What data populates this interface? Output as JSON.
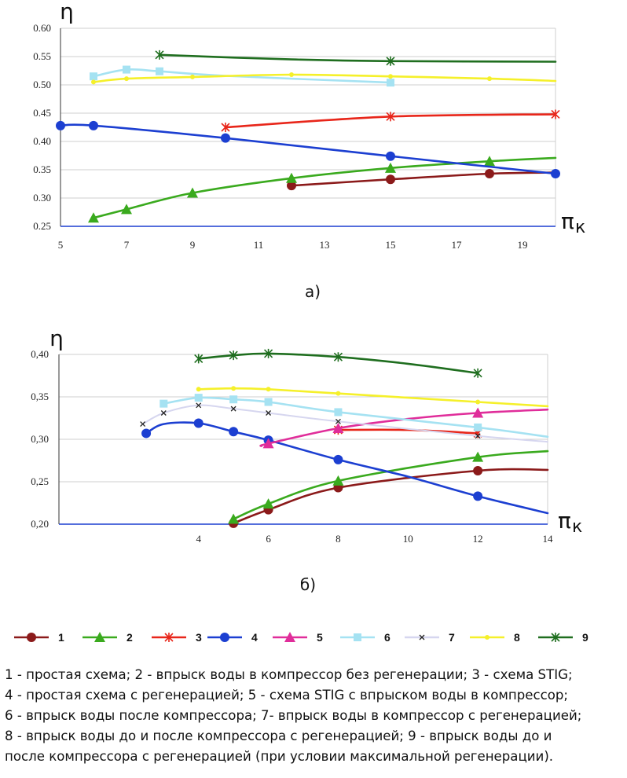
{
  "colors": {
    "s1": "#8b1a1a",
    "s2": "#3aaa1e",
    "s3": "#e8261a",
    "s4": "#1c3fd1",
    "s5": "#e02d9a",
    "s6": "#a5e2f2",
    "s7": "#d6d6ef",
    "s8": "#f5f02a",
    "s9": "#1f6e1f"
  },
  "markers": {
    "s1": "circle",
    "s2": "triangle",
    "s3": "star",
    "s4": "circle",
    "s5": "triangle",
    "s6": "square",
    "s7": "x",
    "s8": "dot",
    "s9": "star"
  },
  "chart_data": [
    {
      "type": "line",
      "panel_label": "а)",
      "ylabel": "η",
      "xlabel": "π",
      "xlabel_sub": "к",
      "xlim": [
        5,
        20
      ],
      "ylim": [
        0.25,
        0.6
      ],
      "x_ticks": [
        "5",
        "7",
        "9",
        "11",
        "13",
        "15",
        "17",
        "19"
      ],
      "x_tick_values": [
        5,
        7,
        9,
        11,
        13,
        15,
        17,
        19
      ],
      "y_ticks": [
        "0.25",
        "0.30",
        "0.35",
        "0.40",
        "0.45",
        "0.50",
        "0.55",
        "0.60"
      ],
      "y_tick_values": [
        0.25,
        0.3,
        0.35,
        0.4,
        0.45,
        0.5,
        0.55,
        0.6
      ],
      "grid": "horizontal",
      "series": [
        {
          "id": "s1",
          "x": [
            12,
            15,
            18,
            20
          ],
          "y": [
            0.322,
            0.333,
            0.343,
            0.345
          ],
          "marked": [
            12,
            15,
            18
          ]
        },
        {
          "id": "s2",
          "x": [
            6,
            7,
            9,
            12,
            15,
            18,
            20
          ],
          "y": [
            0.265,
            0.28,
            0.309,
            0.335,
            0.353,
            0.365,
            0.371
          ],
          "marked": [
            6,
            7,
            9,
            12,
            15,
            18
          ]
        },
        {
          "id": "s3",
          "x": [
            10,
            15,
            20
          ],
          "y": [
            0.425,
            0.444,
            0.448
          ],
          "marked": [
            10,
            15,
            20
          ]
        },
        {
          "id": "s4",
          "x": [
            5,
            6,
            10,
            15,
            20
          ],
          "y": [
            0.428,
            0.428,
            0.406,
            0.374,
            0.343
          ],
          "marked": [
            5,
            6,
            10,
            15,
            20
          ]
        },
        {
          "id": "s6",
          "x": [
            6,
            7,
            8,
            10,
            15
          ],
          "y": [
            0.515,
            0.527,
            0.524,
            0.516,
            0.504
          ],
          "marked": [
            6,
            7,
            8,
            15
          ]
        },
        {
          "id": "s8",
          "x": [
            6,
            7,
            9,
            12,
            15,
            18,
            20
          ],
          "y": [
            0.505,
            0.511,
            0.514,
            0.518,
            0.515,
            0.511,
            0.507
          ],
          "marked": [
            6,
            7,
            9,
            12,
            15,
            18
          ]
        },
        {
          "id": "s9",
          "x": [
            8,
            12,
            15,
            20
          ],
          "y": [
            0.553,
            0.545,
            0.542,
            0.541
          ],
          "marked": [
            8,
            15
          ]
        }
      ]
    },
    {
      "type": "line",
      "panel_label": "б)",
      "ylabel": "η",
      "xlabel": "π",
      "xlabel_sub": "к",
      "xlim": [
        0,
        14
      ],
      "ylim": [
        0.2,
        0.4
      ],
      "x_ticks": [
        "4",
        "6",
        "8",
        "10",
        "12",
        "14"
      ],
      "x_tick_values": [
        4,
        6,
        8,
        10,
        12,
        14
      ],
      "y_ticks": [
        "0,20",
        "0,25",
        "0,30",
        "0,35",
        "0,40"
      ],
      "y_tick_values": [
        0.2,
        0.25,
        0.3,
        0.35,
        0.4
      ],
      "grid": "horizontal",
      "series": [
        {
          "id": "s1",
          "x": [
            5,
            6,
            8,
            12,
            14
          ],
          "y": [
            0.201,
            0.217,
            0.243,
            0.263,
            0.264
          ],
          "marked": [
            5,
            6,
            8,
            12
          ]
        },
        {
          "id": "s2",
          "x": [
            5,
            6,
            8,
            12,
            14
          ],
          "y": [
            0.206,
            0.224,
            0.251,
            0.279,
            0.286
          ],
          "marked": [
            5,
            6,
            8,
            12
          ]
        },
        {
          "id": "s3",
          "x": [
            8,
            10,
            12
          ],
          "y": [
            0.311,
            0.311,
            0.307
          ],
          "marked": [
            8,
            12
          ]
        },
        {
          "id": "s4",
          "x": [
            2.5,
            3,
            4,
            5,
            6,
            8,
            10,
            12,
            14
          ],
          "y": [
            0.307,
            0.318,
            0.319,
            0.309,
            0.299,
            0.276,
            0.256,
            0.233,
            0.213
          ],
          "marked": [
            2.5,
            4,
            5,
            6,
            8,
            12
          ]
        },
        {
          "id": "s5",
          "x": [
            5.8,
            6,
            8,
            10,
            12,
            14
          ],
          "y": [
            0.292,
            0.295,
            0.313,
            0.324,
            0.331,
            0.335
          ],
          "marked": [
            6,
            8,
            12
          ]
        },
        {
          "id": "s6",
          "x": [
            3,
            4,
            5,
            6,
            8,
            12,
            14
          ],
          "y": [
            0.342,
            0.349,
            0.347,
            0.344,
            0.332,
            0.314,
            0.303
          ],
          "marked": [
            3,
            4,
            5,
            6,
            8,
            12
          ]
        },
        {
          "id": "s7",
          "x": [
            2.4,
            3,
            4,
            5,
            6,
            8,
            12,
            14
          ],
          "y": [
            0.318,
            0.331,
            0.34,
            0.336,
            0.331,
            0.321,
            0.304,
            0.297
          ],
          "marked": [
            2.4,
            3,
            4,
            5,
            6,
            8,
            12
          ]
        },
        {
          "id": "s8",
          "x": [
            4,
            5,
            6,
            8,
            12,
            14
          ],
          "y": [
            0.359,
            0.36,
            0.359,
            0.354,
            0.344,
            0.339
          ],
          "marked": [
            4,
            5,
            6,
            8,
            12
          ]
        },
        {
          "id": "s9",
          "x": [
            4,
            5,
            6,
            8,
            10,
            12
          ],
          "y": [
            0.395,
            0.399,
            0.401,
            0.397,
            0.389,
            0.378
          ],
          "marked": [
            4,
            5,
            6,
            8,
            12
          ]
        }
      ]
    }
  ],
  "legend": {
    "items": [
      {
        "id": "s1",
        "label": "1"
      },
      {
        "id": "s2",
        "label": "2"
      },
      {
        "id": "s3",
        "label": "3"
      },
      {
        "id": "s4",
        "label": "4"
      },
      {
        "id": "s5",
        "label": "5"
      },
      {
        "id": "s6",
        "label": "6"
      },
      {
        "id": "s7",
        "label": "7"
      },
      {
        "id": "s8",
        "label": "8"
      },
      {
        "id": "s9",
        "label": "9"
      }
    ]
  },
  "caption": {
    "lines": [
      "1 - простая схема; 2 - впрыск воды в компрессор без регенерации; 3 - схема STIG;",
      "4 - простая схема с регенерацией; 5 - схема STIG с впрыском воды в компрессор;",
      "6 - впрыск воды после компрессора; 7- впрыск воды в компрессор с регенерацией;",
      "8 - впрыск воды до и после компрессора с регенерацией; 9 - впрыск воды до и",
      "после компрессора с регенерацией (при условии максимальной регенерации)."
    ]
  }
}
